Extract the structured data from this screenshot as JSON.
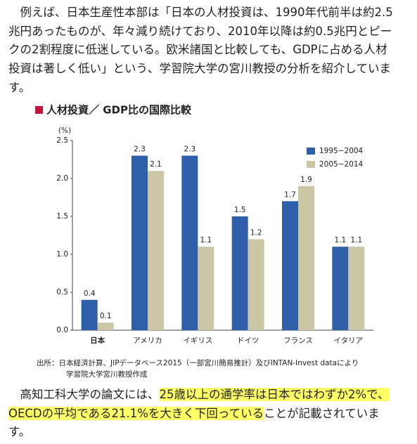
{
  "paragraph1": {
    "lines": [
      "　例えば、日本生産性本部は「日本の人材投資は、1990年代前半は約2.5",
      "兆円あったものが、年々減り続けており、2010年以降は約0.5兆円とピー",
      "クの2割程度に低迷している。欧米諸国と比較しても、GDPに占める人材",
      "投資は著しく低い」という、学習院大学の宮川教授の分析を紹介していま",
      "す。"
    ]
  },
  "chart_data": {
    "type": "bar",
    "title": "人材投資／ GDP比の国際比較",
    "y_label": "(%)",
    "categories": [
      "日本",
      "アメリカ",
      "イギリス",
      "ドイツ",
      "フランス",
      "イタリア"
    ],
    "series": [
      {
        "name": "1995−2004",
        "color": "#2e5fa8",
        "values": [
          0.4,
          2.3,
          2.3,
          1.5,
          1.7,
          1.1
        ]
      },
      {
        "name": "2005−2014",
        "color": "#cbc7a6",
        "values": [
          0.1,
          2.1,
          1.1,
          1.2,
          1.9,
          1.1
        ]
      }
    ],
    "ylim": [
      0,
      2.5
    ],
    "yticks": [
      {
        "value": 0,
        "label": "0.0"
      },
      0.5,
      {
        "value": 1,
        "label": "1.0"
      },
      1.5,
      {
        "value": 2,
        "label": "2.0"
      },
      2.5
    ],
    "legend": "upper right",
    "source": [
      "出所：日本経済計算、JIPデータベース2015（一部宮川簡易推計）及びINTAN-Invest dataにより",
      "学習院大学宮川教授作成"
    ]
  },
  "paragraph2": {
    "lines": [
      [
        {
          "text": "　高知工科大学の論文には、",
          "highlight": false
        },
        {
          "text": "25歳以上の通学率は日本ではわずか2%で、",
          "highlight": true
        }
      ],
      [
        {
          "text": "OECDの平均である21.1%を大きく下回っている",
          "highlight": true
        },
        {
          "text": "ことが記載されていま",
          "highlight": false
        }
      ],
      [
        {
          "text": "す。",
          "highlight": false
        }
      ]
    ]
  }
}
